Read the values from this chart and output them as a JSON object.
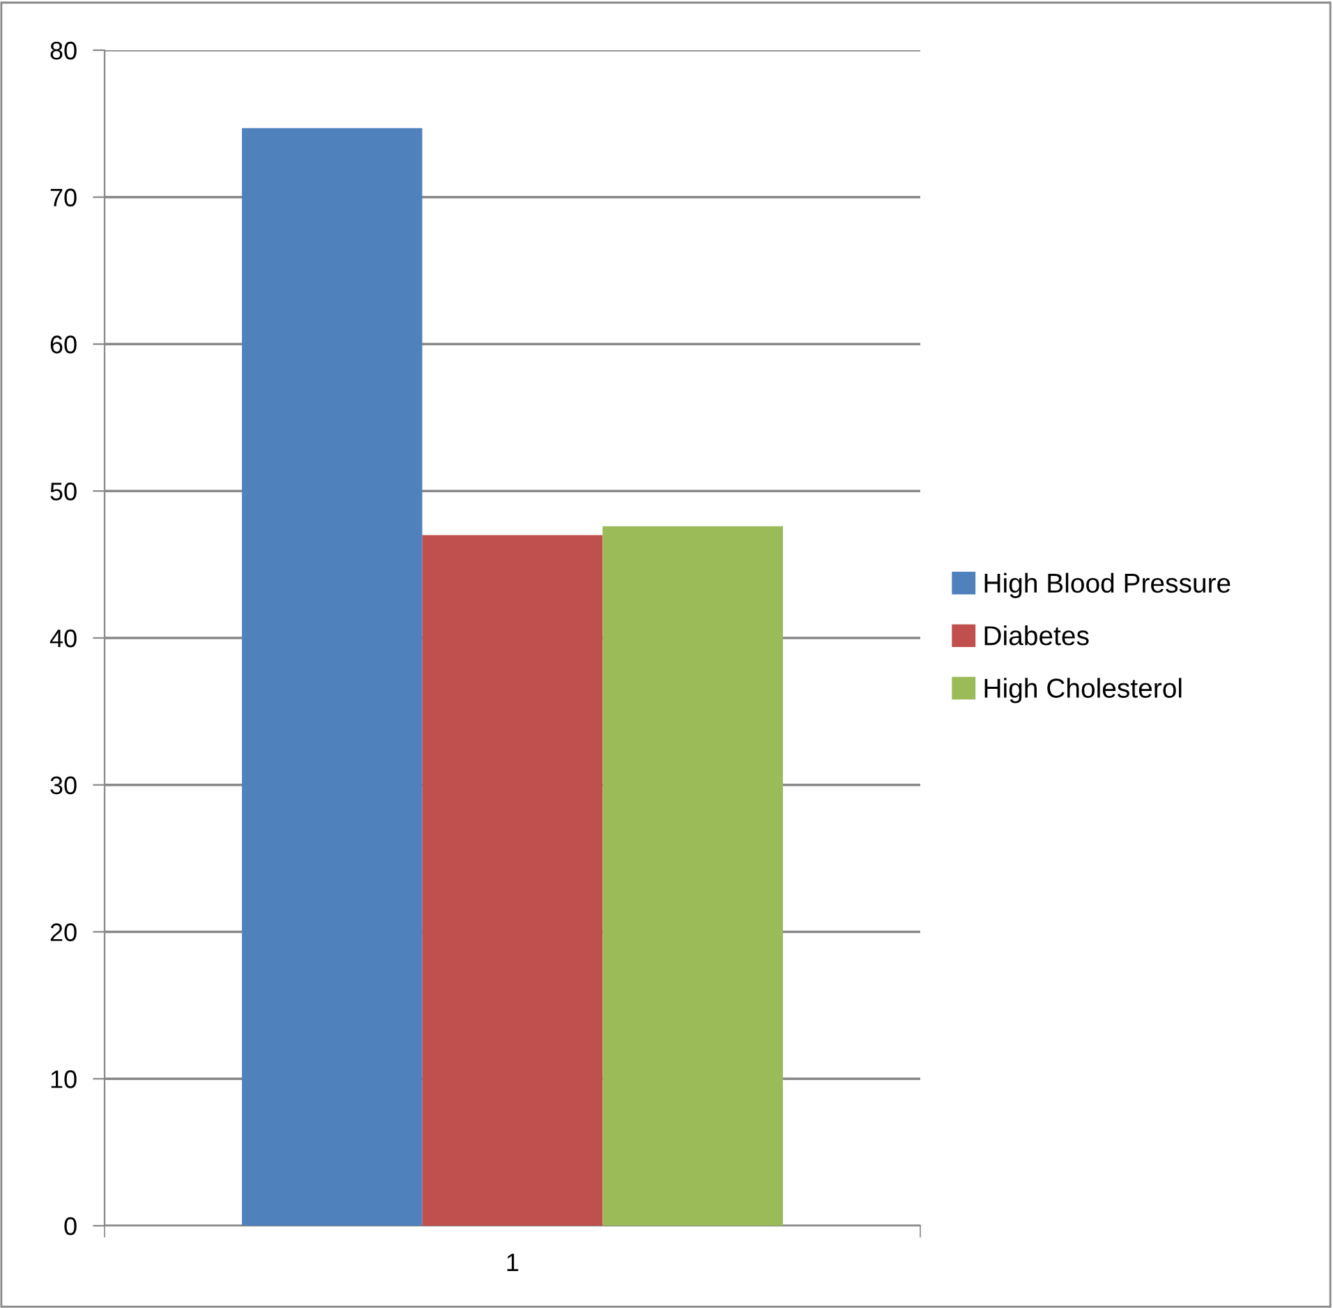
{
  "chart_data": {
    "type": "bar",
    "categories": [
      "1"
    ],
    "series": [
      {
        "name": "High Blood Pressure",
        "color": "#4f81bd",
        "values": [
          74.7
        ]
      },
      {
        "name": "Diabetes",
        "color": "#c0504d",
        "values": [
          47.0
        ]
      },
      {
        "name": "High Cholesterol",
        "color": "#9bbb59",
        "values": [
          47.6
        ]
      }
    ],
    "ylim": [
      0,
      80
    ],
    "yticks": [
      0,
      10,
      20,
      30,
      40,
      50,
      60,
      70,
      80
    ],
    "grid": "y",
    "legend": "right"
  }
}
